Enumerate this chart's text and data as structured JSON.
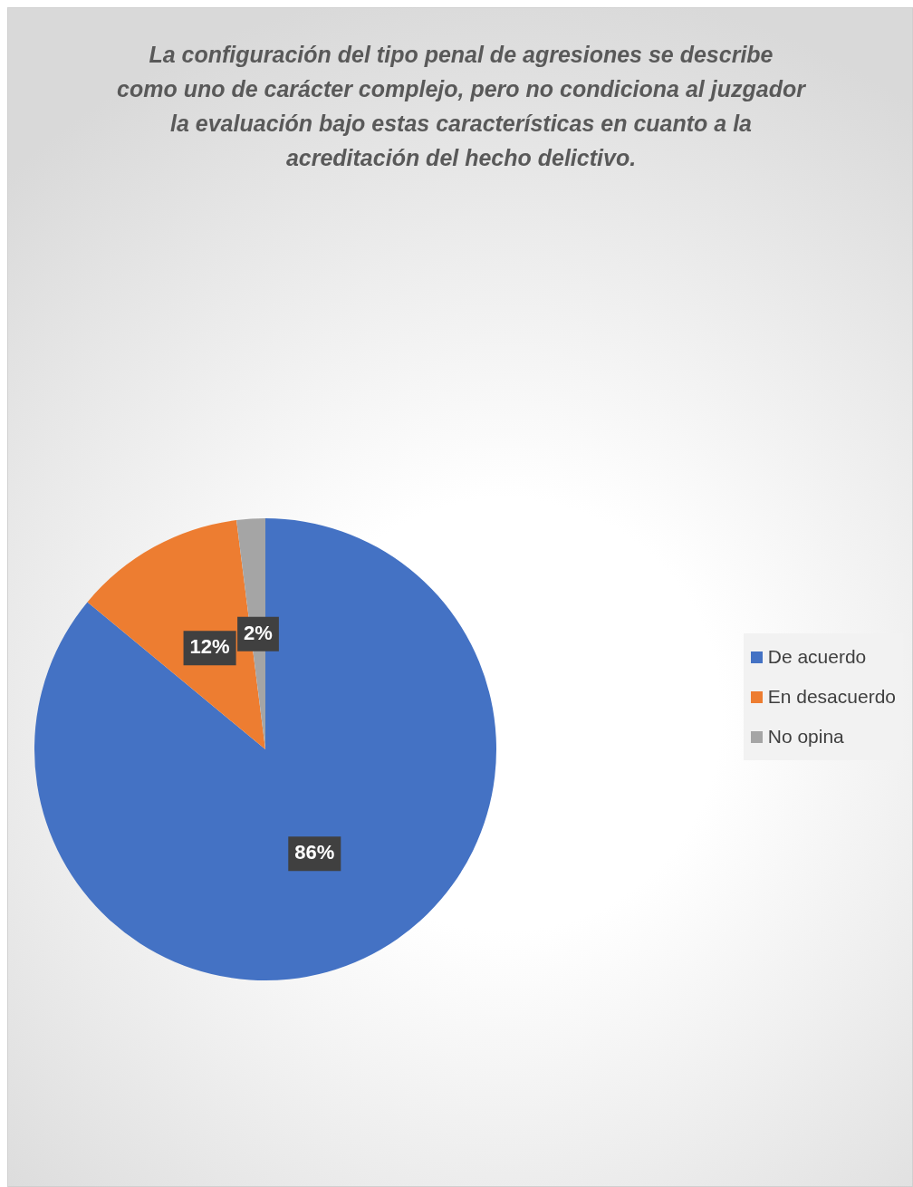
{
  "chart_data": {
    "type": "pie",
    "title": "La configuración del tipo penal de agresiones se describe como uno de carácter complejo, pero no condiciona al juzgador la evaluación bajo estas características en cuanto a la acreditación del hecho delictivo.",
    "categories": [
      "De acuerdo",
      "En desacuerdo",
      "No opina"
    ],
    "values": [
      86,
      12,
      2
    ],
    "colors": [
      "#4472c4",
      "#ed7d31",
      "#a5a5a5"
    ],
    "value_labels": [
      "86%",
      "12%",
      "2%"
    ],
    "legend": "right"
  }
}
